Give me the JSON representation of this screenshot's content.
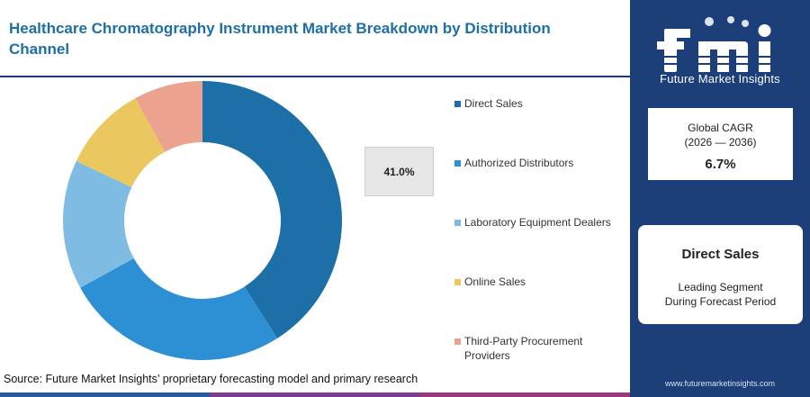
{
  "title": "Healthcare Chromatography Instrument Market Breakdown by Distribution Channel",
  "source": "Source: Future Market Insights’ proprietary forecasting model and primary research",
  "highlight_value": "41.0%",
  "chart_data": {
    "type": "pie",
    "donut": true,
    "categories": [
      "Direct Sales",
      "Authorized Distributors",
      "Laboratory Equipment Dealers",
      "Online Sales",
      "Third-Party Procurement Providers"
    ],
    "values": [
      41.0,
      26.0,
      15.0,
      10.0,
      8.0
    ],
    "colors": [
      "#1d6fa8",
      "#2e90d4",
      "#7fbce3",
      "#ebc760",
      "#eba28e"
    ],
    "legend_position": "right"
  },
  "bottom_bar_colors": [
    "#2a5aa0",
    "#7a3e8e",
    "#9a3a7c"
  ],
  "sidebar": {
    "brand": "Future Market Insights",
    "cagr_label_line1": "Global CAGR",
    "cagr_label_line2": "(2026 — 2036)",
    "cagr_value": "6.7%",
    "segment_title": "Direct Sales",
    "segment_sub_line1": "Leading Segment",
    "segment_sub_line2": "During Forecast Period",
    "website": "www.futuremarketinsights.com"
  }
}
